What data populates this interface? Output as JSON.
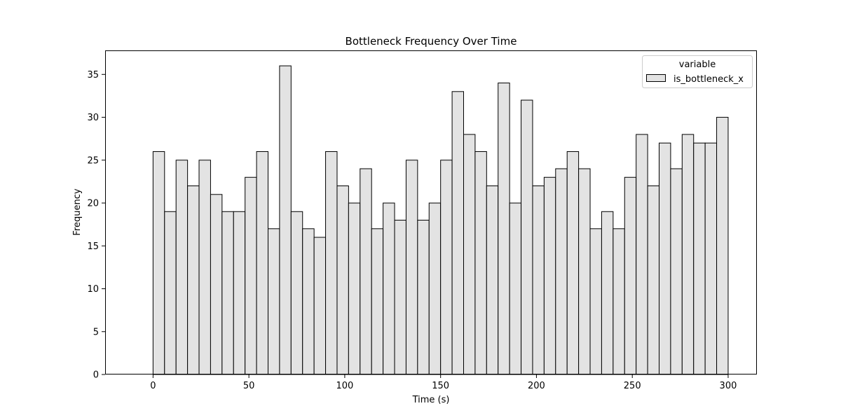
{
  "chart_data": {
    "type": "bar",
    "title": "Bottleneck Frequency Over Time",
    "xlabel": "Time (s)",
    "ylabel": "Frequency",
    "xlim": [
      -25,
      315
    ],
    "ylim": [
      0,
      37.8
    ],
    "xticks": [
      0,
      50,
      100,
      150,
      200,
      250,
      300
    ],
    "yticks": [
      0,
      5,
      10,
      15,
      20,
      25,
      30,
      35
    ],
    "bin_edges": [
      0,
      6,
      12,
      18,
      24,
      30,
      36,
      42,
      48,
      54,
      60,
      66,
      72,
      78,
      84,
      90,
      96,
      102,
      108,
      114,
      120,
      126,
      132,
      138,
      144,
      150,
      156,
      162,
      168,
      174,
      180,
      186,
      192,
      198,
      204,
      210,
      216,
      222,
      228,
      234,
      240,
      246,
      252,
      258,
      264,
      270,
      276,
      282,
      288,
      294,
      300
    ],
    "series": [
      {
        "name": "is_bottleneck_x",
        "values": [
          26,
          19,
          25,
          22,
          25,
          21,
          19,
          19,
          23,
          26,
          17,
          36,
          19,
          17,
          16,
          26,
          22,
          20,
          24,
          17,
          20,
          18,
          25,
          18,
          20,
          25,
          33,
          28,
          26,
          22,
          34,
          20,
          32,
          22,
          23,
          24,
          26,
          24,
          17,
          19,
          17,
          23,
          28,
          22,
          27,
          24,
          28,
          27,
          27,
          30
        ]
      }
    ],
    "legend": {
      "title": "variable",
      "position": "top-right"
    },
    "grid": false,
    "bar_color": "#e3e3e3",
    "edge_color": "#000000"
  }
}
